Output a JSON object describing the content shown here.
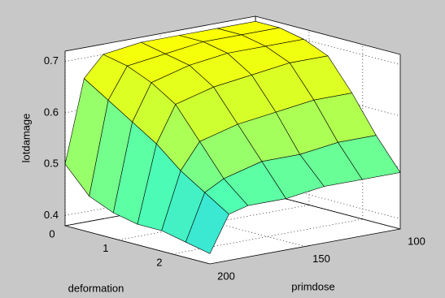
{
  "chart_data": {
    "type": "surface",
    "xlabel": "deformation",
    "ylabel": "primdose",
    "zlabel": "lotdamage",
    "x": [
      0,
      0.45,
      0.9,
      1.35,
      1.8,
      2.25,
      2.7
    ],
    "y": [
      100,
      120,
      140,
      160,
      180,
      190,
      200
    ],
    "z": [
      [
        0.71,
        0.71,
        0.7,
        0.68,
        0.62,
        0.55,
        0.49
      ],
      [
        0.71,
        0.71,
        0.7,
        0.68,
        0.62,
        0.55,
        0.49
      ],
      [
        0.71,
        0.71,
        0.7,
        0.67,
        0.61,
        0.54,
        0.49
      ],
      [
        0.71,
        0.7,
        0.69,
        0.66,
        0.6,
        0.54,
        0.48
      ],
      [
        0.7,
        0.69,
        0.67,
        0.64,
        0.58,
        0.52,
        0.48
      ],
      [
        0.66,
        0.63,
        0.6,
        0.57,
        0.53,
        0.5,
        0.47
      ],
      [
        0.5,
        0.45,
        0.43,
        0.42,
        0.42,
        0.41,
        0.4
      ]
    ],
    "xlim": [
      0,
      2.7
    ],
    "ylim": [
      100,
      200
    ],
    "zlim": [
      0.38,
      0.72
    ],
    "xticks": [
      0,
      1,
      2
    ],
    "yticks": [
      100,
      150,
      200
    ],
    "zticks": [
      0.4,
      0.5,
      0.6,
      0.7
    ],
    "colormap": [
      "#1ec8ff",
      "#50ffb0",
      "#c8ff38",
      "#ffff00"
    ],
    "grid": true
  }
}
